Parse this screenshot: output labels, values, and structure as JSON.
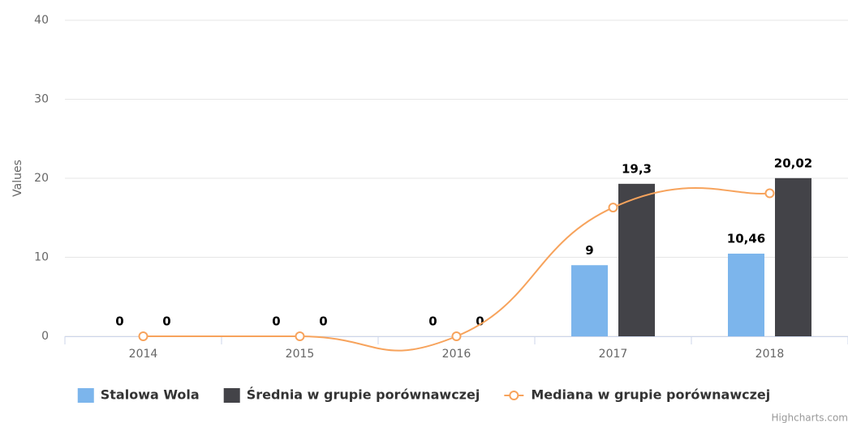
{
  "chart_data": {
    "type": "column-spline",
    "y_axis_label": "Values",
    "categories": [
      "2014",
      "2015",
      "2016",
      "2017",
      "2018"
    ],
    "series": [
      {
        "name": "Stalowa Wola",
        "type": "column",
        "color": "#7cb5ec",
        "values": [
          0,
          0,
          0,
          9,
          10.46
        ],
        "value_labels": [
          "0",
          "0",
          "0",
          "9",
          "10,46"
        ]
      },
      {
        "name": "Średnia w grupie porównawczej",
        "type": "column",
        "color": "#434348",
        "values": [
          0,
          0,
          0,
          19.3,
          20.02
        ],
        "value_labels": [
          "0",
          "0",
          "0",
          "19,3",
          "20,02"
        ]
      },
      {
        "name": "Mediana w grupie porównawczej",
        "type": "spline",
        "color": "#f7a35c",
        "values": [
          0,
          0,
          0,
          16.3,
          18.1
        ]
      }
    ],
    "ylim": [
      0,
      40
    ],
    "yticks": [
      0,
      10,
      20,
      30,
      40
    ],
    "grid": true,
    "credits": "Highcharts.com"
  }
}
